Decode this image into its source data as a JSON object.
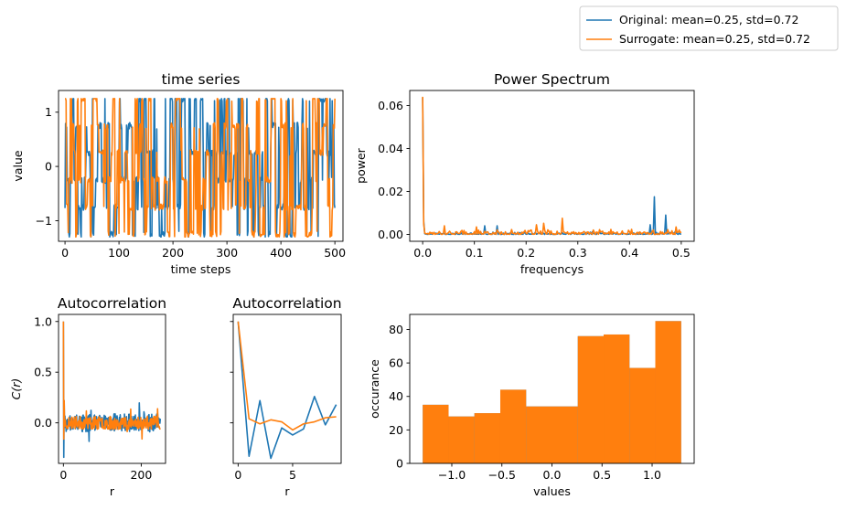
{
  "colors": {
    "original": "#1f77b4",
    "surrogate": "#ff7f0e"
  },
  "legend": {
    "placement": "top-right",
    "entries": [
      {
        "label": "Original: mean=0.25, std=0.72",
        "color": "#1f77b4"
      },
      {
        "label": "Surrogate: mean=0.25, std=0.72",
        "color": "#ff7f0e"
      }
    ]
  },
  "chart_data": [
    {
      "id": "ts",
      "type": "line",
      "title": "time series",
      "xlabel": "time steps",
      "ylabel": "value",
      "xlim": [
        -12,
        515
      ],
      "ylim": [
        -1.38,
        1.4
      ],
      "xticks": [
        0,
        100,
        200,
        300,
        400,
        500
      ],
      "xtick_labels": [
        "0",
        "100",
        "200",
        "300",
        "400",
        "500"
      ],
      "yticks": [
        -1,
        0,
        1
      ],
      "ytick_labels": [
        "−1",
        "0",
        "1"
      ],
      "series": [
        {
          "key": "original",
          "x_start": 0,
          "x_step": 1,
          "n": 501,
          "generator": "ts",
          "seed": 11
        },
        {
          "key": "surrogate",
          "x_start": 0,
          "x_step": 1,
          "n": 501,
          "generator": "ts",
          "seed": 29
        }
      ]
    },
    {
      "id": "ps",
      "type": "line",
      "title": "Power Spectrum",
      "xlabel": "frequencys",
      "ylabel": "power",
      "xlim": [
        -0.025,
        0.525
      ],
      "ylim": [
        -0.0032,
        0.067
      ],
      "xticks": [
        0.0,
        0.1,
        0.2,
        0.3,
        0.4,
        0.5
      ],
      "xtick_labels": [
        "0.0",
        "0.1",
        "0.2",
        "0.3",
        "0.4",
        "0.5"
      ],
      "yticks": [
        0.0,
        0.02,
        0.04,
        0.06
      ],
      "ytick_labels": [
        "0.00",
        "0.02",
        "0.04",
        "0.06"
      ],
      "series": [
        {
          "key": "original",
          "x_start": 0,
          "x_step": 0.002,
          "n": 251,
          "generator": "spectrum",
          "seed": 5,
          "baseline": 0.0006,
          "peaks": [
            [
              0.0,
              0.0637
            ],
            [
              0.002,
              0.006
            ],
            [
              0.135,
              0.009
            ],
            [
              0.12,
              0.004
            ],
            [
              0.145,
              0.004
            ],
            [
              0.265,
              0.0055
            ],
            [
              0.44,
              0.0045
            ],
            [
              0.448,
              0.0175
            ],
            [
              0.47,
              0.009
            ],
            [
              0.465,
              0.005
            ],
            [
              0.495,
              0.003
            ]
          ]
        },
        {
          "key": "surrogate",
          "x_start": 0,
          "x_step": 0.002,
          "n": 251,
          "generator": "spectrum",
          "seed": 17,
          "baseline": 0.0012,
          "peaks": [
            [
              0.0,
              0.0641
            ],
            [
              0.002,
              0.005
            ],
            [
              0.042,
              0.004
            ],
            [
              0.105,
              0.0035
            ],
            [
              0.22,
              0.0045
            ],
            [
              0.235,
              0.0052
            ],
            [
              0.27,
              0.0075
            ],
            [
              0.325,
              0.0045
            ],
            [
              0.335,
              0.004
            ],
            [
              0.357,
              0.0048
            ],
            [
              0.455,
              0.0045
            ],
            [
              0.49,
              0.0035
            ]
          ]
        }
      ]
    },
    {
      "id": "acf_full",
      "type": "line",
      "title": "Autocorrelation",
      "xlabel": "r",
      "ylabel": "C(r)",
      "xlim": [
        -12.5,
        262.5
      ],
      "ylim": [
        -0.4,
        1.07
      ],
      "xticks": [
        0,
        200
      ],
      "xtick_labels": [
        "0",
        "200"
      ],
      "yticks": [
        0.0,
        0.5,
        1.0
      ],
      "ytick_labels": [
        "0.0",
        "0.5",
        "1.0"
      ],
      "series": [
        {
          "key": "original",
          "x_start": 0,
          "x_step": 1,
          "n": 250,
          "generator": "acf",
          "seed": 3,
          "dip": -0.34,
          "amp": 0.09
        },
        {
          "key": "surrogate",
          "x_start": 0,
          "x_step": 1,
          "n": 250,
          "generator": "acf",
          "seed": 23,
          "dip": -0.16,
          "amp": 0.065
        }
      ]
    },
    {
      "id": "acf_zoom",
      "type": "line",
      "title": "Autocorrelation",
      "xlabel": "r",
      "ylabel": "",
      "xlim": [
        -0.45,
        9.45
      ],
      "ylim": [
        -0.4,
        1.07
      ],
      "xticks": [
        0,
        5
      ],
      "xtick_labels": [
        "0",
        "5"
      ],
      "yticks": [
        0.0,
        0.5,
        1.0
      ],
      "ytick_labels": [],
      "series": [
        {
          "key": "original",
          "x": [
            0,
            1,
            2,
            3,
            4,
            5,
            6,
            7,
            8,
            9
          ],
          "y": [
            1.0,
            -0.33,
            0.22,
            -0.35,
            -0.05,
            -0.12,
            -0.06,
            0.26,
            -0.02,
            0.18
          ]
        },
        {
          "key": "surrogate",
          "x": [
            0,
            1,
            2,
            3,
            4,
            5,
            6,
            7,
            8,
            9
          ],
          "y": [
            1.0,
            0.04,
            -0.01,
            0.03,
            0.01,
            -0.07,
            -0.01,
            0.01,
            0.05,
            0.06
          ]
        }
      ]
    },
    {
      "id": "hist",
      "type": "bar",
      "title": "",
      "xlabel": "values",
      "ylabel": "occurance",
      "xlim": [
        -1.42,
        1.42
      ],
      "ylim": [
        0,
        89
      ],
      "xticks": [
        -1.0,
        -0.5,
        0.0,
        0.5,
        1.0
      ],
      "xtick_labels": [
        "−1.0",
        "−0.5",
        "0.0",
        "0.5",
        "1.0"
      ],
      "yticks": [
        0,
        20,
        40,
        60,
        80
      ],
      "ytick_labels": [
        "0",
        "20",
        "40",
        "60",
        "80"
      ],
      "bin_edges": [
        -1.29,
        -1.032,
        -0.774,
        -0.516,
        -0.258,
        0.0,
        0.258,
        0.516,
        0.774,
        1.032,
        1.29
      ],
      "series": [
        {
          "key": "original",
          "values": [
            35,
            28,
            30,
            44,
            34,
            34,
            76,
            77,
            57,
            85
          ]
        },
        {
          "key": "surrogate",
          "values": [
            35,
            28,
            30,
            44,
            34,
            34,
            76,
            77,
            57,
            85
          ]
        }
      ]
    }
  ]
}
